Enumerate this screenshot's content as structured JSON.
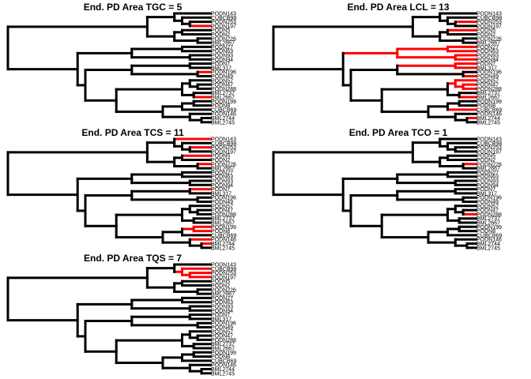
{
  "taxa": [
    "PODN143",
    "CUBCB98",
    "PODN253",
    "PODN197",
    "PODN5",
    "PODN2",
    "PODN226",
    "BML2667",
    "PODN27",
    "PODN63",
    "PODN93",
    "PODN94",
    "PODN7",
    "BML317",
    "PODN196",
    "PODN49",
    "PODN57",
    "PODN47",
    "PODN288",
    "BML2737",
    "BML2667",
    "PODN199",
    "PODN8",
    "CUBCB69",
    "PODN146",
    "BML2744",
    "BML2745"
  ],
  "colors": {
    "branch": "#000000",
    "highlight": "#ff0000"
  },
  "panels": [
    {
      "title": "End. PD Area TGC = 5",
      "highlight_tips": [
        3,
        14,
        20
      ],
      "highlight_nodes": []
    },
    {
      "title": "End. PD Area LCL = 13",
      "highlight_tips": [
        2,
        4,
        8,
        9,
        10,
        11,
        12,
        13,
        15,
        16,
        17,
        18,
        20,
        23,
        25
      ],
      "highlight_nodes": []
    },
    {
      "title": "End. PD Area TCS = 11",
      "highlight_tips": [
        0,
        2,
        4,
        6,
        12,
        21,
        22,
        24,
        25
      ],
      "highlight_nodes": []
    },
    {
      "title": "End. PD Area TCO = 1",
      "highlight_tips": [
        6,
        18
      ],
      "highlight_nodes": []
    },
    {
      "title": "End. PD Area TQS = 7",
      "highlight_tips": [
        1,
        2,
        3
      ],
      "highlight_nodes": []
    }
  ]
}
